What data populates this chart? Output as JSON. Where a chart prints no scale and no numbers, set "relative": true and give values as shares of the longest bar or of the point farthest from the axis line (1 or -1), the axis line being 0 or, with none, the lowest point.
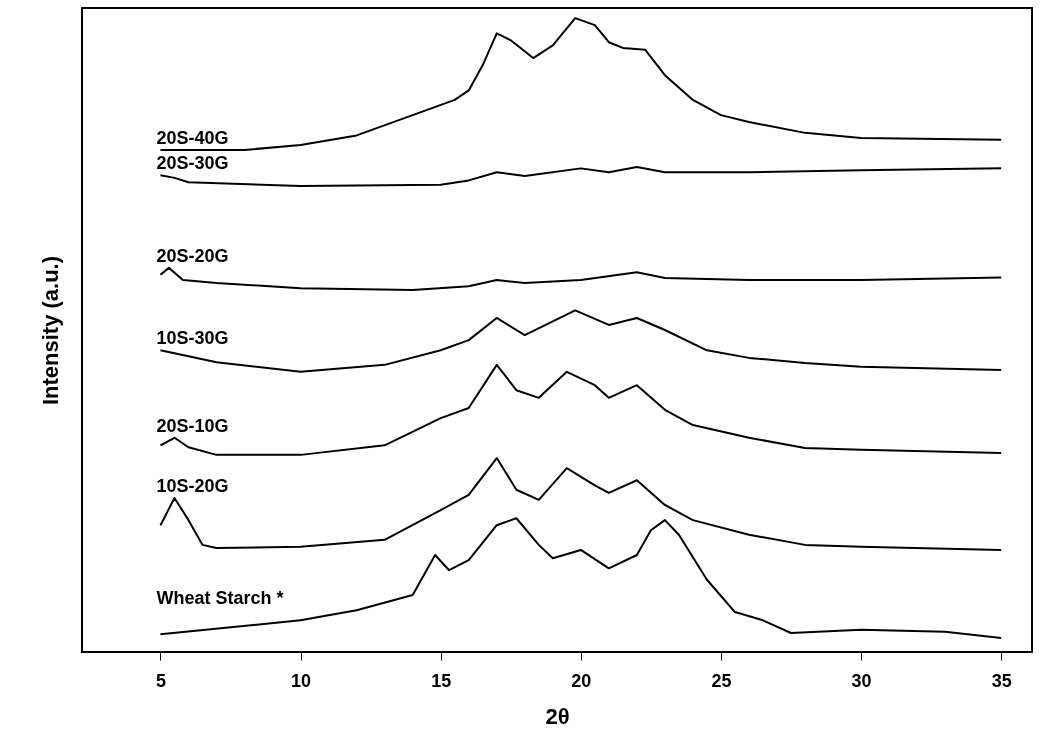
{
  "chart_data": {
    "type": "line",
    "relative": true,
    "xlabel": "2θ",
    "ylabel": "Intensity (a.u.)",
    "xlim": [
      2.2,
      36.1
    ],
    "xticks": [
      5,
      10,
      15,
      20,
      25,
      30,
      35
    ],
    "grid": false,
    "marker": "none",
    "line_style": "solid",
    "series": [
      {
        "name": "Wheat Starch *",
        "color": "#000000",
        "x": [
          5,
          10,
          12,
          14,
          14.8,
          15.3,
          16,
          17,
          17.7,
          18.5,
          19,
          20,
          21,
          22,
          22.5,
          23,
          23.5,
          24.5,
          25.5,
          26.5,
          27.5,
          30,
          33,
          35
        ],
        "values": [
          0.028,
          0.05,
          0.066,
          0.09,
          0.153,
          0.129,
          0.145,
          0.2,
          0.211,
          0.169,
          0.148,
          0.161,
          0.132,
          0.153,
          0.192,
          0.208,
          0.185,
          0.114,
          0.063,
          0.05,
          0.03,
          0.035,
          0.032,
          0.022
        ]
      },
      {
        "name": "10S-20G",
        "color": "#000000",
        "x": [
          5,
          5.5,
          6,
          6.5,
          7,
          10,
          13,
          15,
          16,
          17,
          17.7,
          18.5,
          19.5,
          20.5,
          21,
          22,
          23,
          24,
          26,
          28,
          30,
          35
        ],
        "values": [
          0.2,
          0.243,
          0.208,
          0.169,
          0.164,
          0.166,
          0.177,
          0.224,
          0.248,
          0.306,
          0.256,
          0.24,
          0.29,
          0.263,
          0.251,
          0.271,
          0.232,
          0.208,
          0.185,
          0.169,
          0.166,
          0.161
        ]
      },
      {
        "name": "20S-10G",
        "color": "#000000",
        "x": [
          5,
          5.5,
          6,
          7,
          10,
          13,
          15,
          16,
          17,
          17.7,
          18.5,
          19.5,
          20.5,
          21,
          22,
          23,
          24,
          26,
          28,
          30,
          35
        ],
        "values": [
          0.326,
          0.338,
          0.323,
          0.311,
          0.311,
          0.326,
          0.369,
          0.385,
          0.453,
          0.413,
          0.401,
          0.442,
          0.421,
          0.401,
          0.421,
          0.382,
          0.358,
          0.338,
          0.322,
          0.319,
          0.314
        ]
      },
      {
        "name": "10S-30G",
        "color": "#000000",
        "x": [
          5,
          7,
          10,
          13,
          15,
          16,
          17,
          18,
          19.8,
          21,
          22,
          23,
          24.5,
          26,
          28,
          30,
          35
        ],
        "values": [
          0.476,
          0.457,
          0.442,
          0.453,
          0.476,
          0.492,
          0.527,
          0.5,
          0.539,
          0.516,
          0.527,
          0.508,
          0.476,
          0.464,
          0.456,
          0.45,
          0.445
        ]
      },
      {
        "name": "20S-20G",
        "color": "#000000",
        "x": [
          5,
          5.3,
          5.8,
          7,
          10,
          14,
          16,
          17,
          18,
          20,
          22,
          23,
          26,
          30,
          35
        ],
        "values": [
          0.595,
          0.606,
          0.587,
          0.582,
          0.574,
          0.571,
          0.577,
          0.587,
          0.582,
          0.587,
          0.599,
          0.59,
          0.587,
          0.587,
          0.591
        ]
      },
      {
        "name": "20S-30G",
        "color": "#000000",
        "x": [
          5,
          5.5,
          6,
          10,
          15,
          16,
          17,
          18,
          20,
          21,
          22,
          23,
          26,
          30,
          35
        ],
        "values": [
          0.752,
          0.748,
          0.741,
          0.735,
          0.737,
          0.744,
          0.757,
          0.751,
          0.763,
          0.757,
          0.765,
          0.757,
          0.757,
          0.76,
          0.763
        ]
      },
      {
        "name": "20S-40G",
        "color": "#000000",
        "x": [
          5,
          8,
          10,
          12,
          14,
          15.5,
          16,
          16.5,
          17,
          17.5,
          18.3,
          19,
          19.8,
          20.5,
          21,
          21.5,
          22.3,
          23,
          24,
          25,
          26,
          28,
          30,
          35
        ],
        "values": [
          0.792,
          0.792,
          0.8,
          0.815,
          0.847,
          0.871,
          0.886,
          0.926,
          0.976,
          0.965,
          0.937,
          0.957,
          1.0,
          0.989,
          0.962,
          0.953,
          0.95,
          0.91,
          0.871,
          0.847,
          0.836,
          0.819,
          0.811,
          0.808
        ]
      }
    ]
  }
}
